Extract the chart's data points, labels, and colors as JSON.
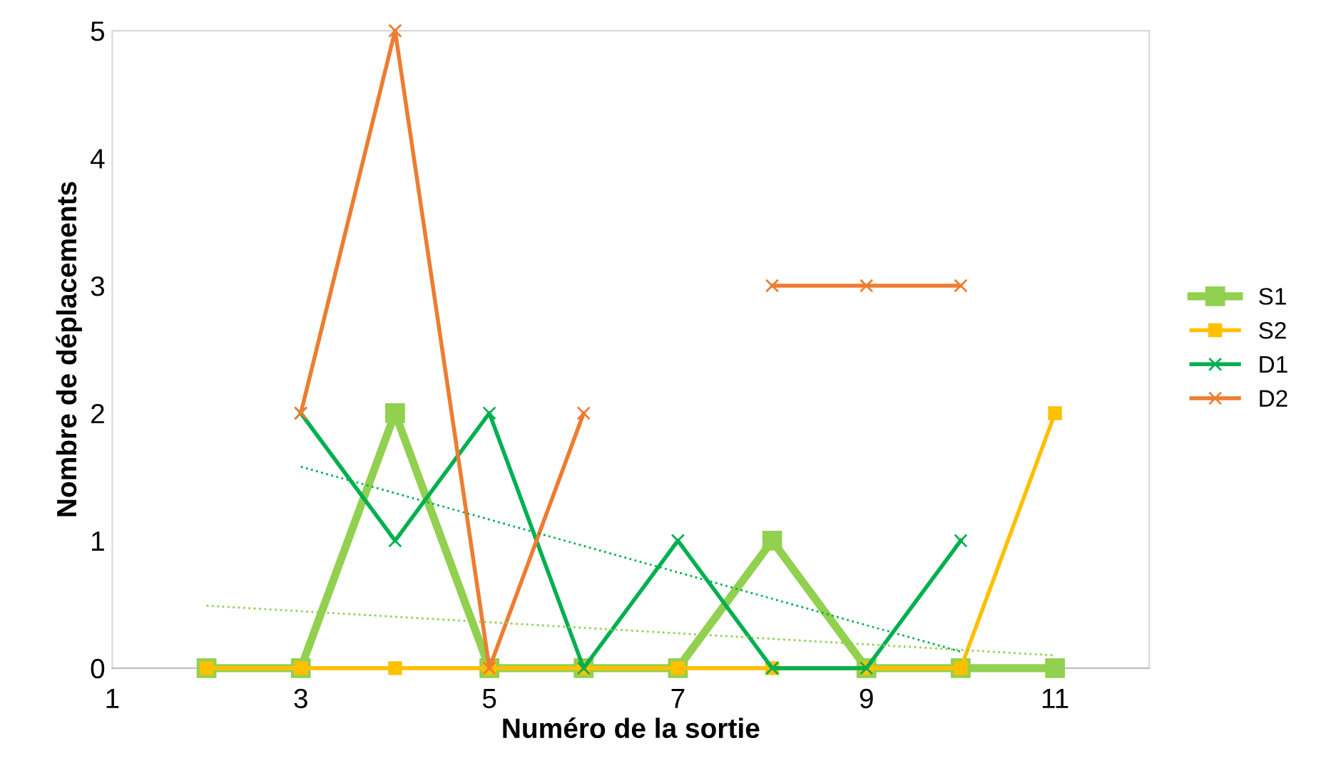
{
  "chart_data": {
    "type": "line",
    "xlabel": "Numéro de la sortie",
    "ylabel": "Nombre de déplacements",
    "x": [
      2,
      3,
      4,
      5,
      6,
      7,
      8,
      9,
      10,
      11
    ],
    "series": [
      {
        "name": "S1",
        "color": "#92d050",
        "marker": "square",
        "values": [
          0,
          0,
          2,
          0,
          0,
          0,
          1,
          0,
          0,
          0
        ]
      },
      {
        "name": "S2",
        "color": "#ffc000",
        "marker": "square",
        "values": [
          0,
          0,
          0,
          0,
          0,
          0,
          0,
          0,
          0,
          2
        ]
      },
      {
        "name": "D1",
        "color": "#00b050",
        "marker": "cross",
        "values": [
          null,
          2,
          1,
          2,
          0,
          1,
          0,
          0,
          1,
          null
        ]
      },
      {
        "name": "D2",
        "color": "#ed7d31",
        "marker": "cross",
        "values": [
          null,
          2,
          5,
          0,
          2,
          null,
          3,
          3,
          3,
          null
        ]
      },
      {
        "color": "#92d050",
        "marker": "none",
        "line_style": "dotted",
        "x": [
          2,
          11
        ],
        "values": [
          0.49,
          0.1
        ]
      },
      {
        "color": "#00b050",
        "marker": "none",
        "line_style": "dotted",
        "x": [
          3,
          10
        ],
        "values": [
          1.58,
          0.13
        ]
      }
    ],
    "xlim": [
      1,
      12
    ],
    "xticks": [
      1,
      3,
      5,
      7,
      9,
      11
    ],
    "ylim": [
      0,
      5
    ],
    "yticks": [
      0,
      1,
      2,
      3,
      4,
      5
    ],
    "grid": false,
    "legend": "right"
  }
}
